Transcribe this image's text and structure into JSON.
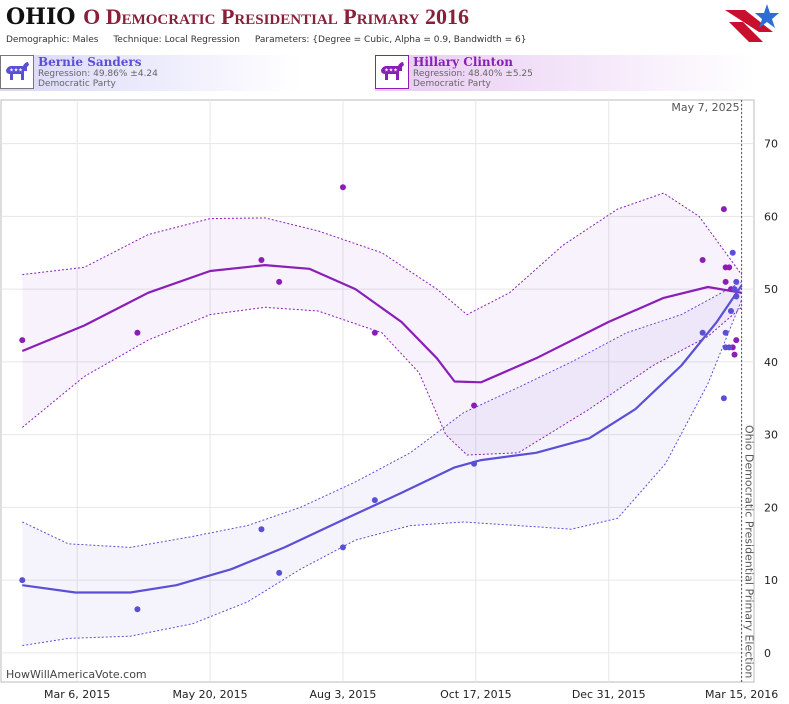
{
  "header": {
    "state": "OHIO",
    "title_rest": "O Democratic Presidential Primary 2016",
    "meta": {
      "demographic_label": "Demographic:",
      "demographic": "Males",
      "technique_label": "Technique:",
      "technique": "Local Regression",
      "parameters_label": "Parameters:",
      "parameters": "{Degree = Cubic, Alpha = 0.9, Bandwidth = 6}"
    }
  },
  "candidates": [
    {
      "name": "Bernie Sanders",
      "regression": "Regression: 49.86% ±4.24",
      "party": "Democratic Party",
      "color": "#5b4fd6"
    },
    {
      "name": "Hillary Clinton",
      "regression": "Regression: 48.40% ±5.25",
      "party": "Democratic Party",
      "color": "#8a1fb8"
    }
  ],
  "credit": "HowWillAmericaVote.com",
  "chart_data": {
    "type": "scatter",
    "title": "",
    "xlabel": "",
    "ylabel": "",
    "ylim": [
      -4,
      76
    ],
    "xlim": [
      "2015-01-22",
      "2016-03-22"
    ],
    "x_ticks": [
      "Mar 6, 2015",
      "May 20, 2015",
      "Aug 3, 2015",
      "Oct 17, 2015",
      "Dec 31, 2015",
      "Mar 15, 2016"
    ],
    "y_ticks": [
      0,
      10,
      20,
      30,
      40,
      50,
      60,
      70
    ],
    "grid": true,
    "annotations": [
      {
        "text": "May 7, 2025",
        "x": "2016-03-15"
      },
      {
        "text": "Ohio Democratic Presidential Primary Election",
        "x": "2016-03-15"
      }
    ],
    "series": [
      {
        "name": "Hillary Clinton",
        "color": "#8a1fb8",
        "points": [
          [
            "2015-02-03",
            43
          ],
          [
            "2015-04-09",
            44
          ],
          [
            "2015-06-18",
            54
          ],
          [
            "2015-06-28",
            51
          ],
          [
            "2015-08-03",
            64
          ],
          [
            "2015-08-21",
            44
          ],
          [
            "2015-10-16",
            34
          ],
          [
            "2016-02-22",
            54
          ],
          [
            "2016-03-05",
            61
          ],
          [
            "2016-03-06",
            53
          ],
          [
            "2016-03-06",
            51
          ],
          [
            "2016-03-08",
            53
          ],
          [
            "2016-03-09",
            50
          ],
          [
            "2016-03-10",
            42
          ],
          [
            "2016-03-11",
            41
          ],
          [
            "2016-03-12",
            49
          ],
          [
            "2016-03-12",
            43
          ]
        ],
        "fit": [
          [
            "2015-02-03",
            41.5
          ],
          [
            "2015-03-10",
            45
          ],
          [
            "2015-04-15",
            49.5
          ],
          [
            "2015-05-20",
            52.5
          ],
          [
            "2015-06-20",
            53.3
          ],
          [
            "2015-07-15",
            52.8
          ],
          [
            "2015-08-10",
            50
          ],
          [
            "2015-09-05",
            45.5
          ],
          [
            "2015-09-25",
            40.5
          ],
          [
            "2015-10-05",
            37.3
          ],
          [
            "2015-10-20",
            37.2
          ],
          [
            "2015-11-20",
            40.5
          ],
          [
            "2015-12-31",
            45.5
          ],
          [
            "2016-01-31",
            48.8
          ],
          [
            "2016-02-25",
            50.3
          ],
          [
            "2016-03-15",
            49.5
          ]
        ],
        "upper": [
          [
            "2015-02-03",
            52
          ],
          [
            "2015-03-10",
            53
          ],
          [
            "2015-04-15",
            57.5
          ],
          [
            "2015-05-20",
            59.7
          ],
          [
            "2015-06-20",
            59.8
          ],
          [
            "2015-07-20",
            58
          ],
          [
            "2015-08-25",
            55
          ],
          [
            "2015-09-25",
            50
          ],
          [
            "2015-10-12",
            46.5
          ],
          [
            "2015-11-05",
            49.5
          ],
          [
            "2015-12-05",
            56
          ],
          [
            "2016-01-05",
            61
          ],
          [
            "2016-01-31",
            63.2
          ],
          [
            "2016-02-20",
            60
          ],
          [
            "2016-03-15",
            52
          ]
        ],
        "lower": [
          [
            "2015-02-03",
            31
          ],
          [
            "2015-03-10",
            38
          ],
          [
            "2015-04-15",
            43
          ],
          [
            "2015-05-20",
            46.5
          ],
          [
            "2015-06-20",
            47.5
          ],
          [
            "2015-07-20",
            47
          ],
          [
            "2015-08-25",
            44
          ],
          [
            "2015-09-15",
            38.5
          ],
          [
            "2015-09-30",
            30
          ],
          [
            "2015-10-12",
            27.2
          ],
          [
            "2015-11-10",
            27.5
          ],
          [
            "2015-12-20",
            33.5
          ],
          [
            "2016-01-25",
            39.5
          ],
          [
            "2016-02-25",
            43.5
          ],
          [
            "2016-03-15",
            47.5
          ]
        ]
      },
      {
        "name": "Bernie Sanders",
        "color": "#5b4fd6",
        "points": [
          [
            "2015-02-03",
            10
          ],
          [
            "2015-04-09",
            6
          ],
          [
            "2015-06-18",
            17
          ],
          [
            "2015-06-28",
            11
          ],
          [
            "2015-08-03",
            14.5
          ],
          [
            "2015-08-21",
            21
          ],
          [
            "2015-10-16",
            26
          ],
          [
            "2016-02-22",
            44
          ],
          [
            "2016-03-05",
            35
          ],
          [
            "2016-03-06",
            44
          ],
          [
            "2016-03-06",
            42
          ],
          [
            "2016-03-08",
            42
          ],
          [
            "2016-03-09",
            47
          ],
          [
            "2016-03-10",
            55
          ],
          [
            "2016-03-11",
            50
          ],
          [
            "2016-03-12",
            51
          ],
          [
            "2016-03-12",
            49
          ]
        ],
        "fit": [
          [
            "2015-02-03",
            9.3
          ],
          [
            "2015-03-05",
            8.3
          ],
          [
            "2015-04-05",
            8.3
          ],
          [
            "2015-05-01",
            9.3
          ],
          [
            "2015-06-01",
            11.5
          ],
          [
            "2015-07-01",
            14.5
          ],
          [
            "2015-08-05",
            18.5
          ],
          [
            "2015-09-05",
            22
          ],
          [
            "2015-10-05",
            25.5
          ],
          [
            "2015-10-20",
            26.5
          ],
          [
            "2015-11-20",
            27.5
          ],
          [
            "2015-12-20",
            29.5
          ],
          [
            "2016-01-15",
            33.5
          ],
          [
            "2016-02-10",
            39.5
          ],
          [
            "2016-03-01",
            45.5
          ],
          [
            "2016-03-15",
            50.5
          ]
        ],
        "upper": [
          [
            "2015-02-03",
            18
          ],
          [
            "2015-03-01",
            15
          ],
          [
            "2015-04-05",
            14.5
          ],
          [
            "2015-05-10",
            16
          ],
          [
            "2015-06-10",
            17.5
          ],
          [
            "2015-07-10",
            20
          ],
          [
            "2015-08-10",
            23.5
          ],
          [
            "2015-09-10",
            27.5
          ],
          [
            "2015-10-10",
            33
          ],
          [
            "2015-11-10",
            36.5
          ],
          [
            "2015-12-10",
            40
          ],
          [
            "2016-01-10",
            44
          ],
          [
            "2016-02-10",
            46.5
          ],
          [
            "2016-03-15",
            51
          ]
        ],
        "lower": [
          [
            "2015-02-03",
            1
          ],
          [
            "2015-03-01",
            2
          ],
          [
            "2015-04-05",
            2.3
          ],
          [
            "2015-05-10",
            4
          ],
          [
            "2015-06-10",
            7
          ],
          [
            "2015-07-10",
            11.5
          ],
          [
            "2015-08-10",
            15.5
          ],
          [
            "2015-09-10",
            17.5
          ],
          [
            "2015-10-10",
            18
          ],
          [
            "2015-11-10",
            17.5
          ],
          [
            "2015-12-10",
            17
          ],
          [
            "2016-01-05",
            18.5
          ],
          [
            "2016-02-01",
            26
          ],
          [
            "2016-02-25",
            37
          ],
          [
            "2016-03-15",
            48.5
          ]
        ]
      }
    ]
  }
}
